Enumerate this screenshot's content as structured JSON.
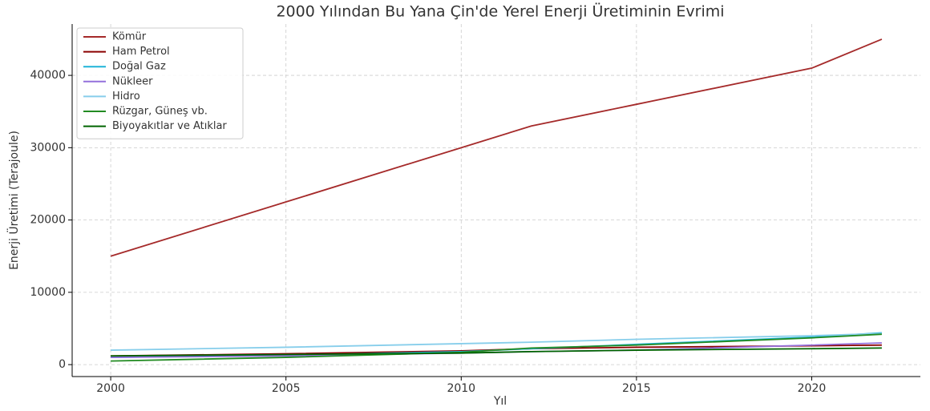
{
  "chart_data": {
    "type": "line",
    "title": "2000 Yılından Bu Yana Çin'de Yerel Enerji Üretiminin Evrimi",
    "x_label": "Yıl",
    "y_label": "Enerji Üretimi (Terajoule)",
    "x": [
      2000,
      2005,
      2010,
      2012,
      2015,
      2020,
      2022
    ],
    "series": [
      {
        "name": "Kömür",
        "color": "#a52a2a",
        "values": [
          15000,
          22500,
          30000,
          33000,
          36000,
          41000,
          45000
        ]
      },
      {
        "name": "Ham Petrol",
        "color": "#8b0000",
        "values": [
          1200,
          1500,
          1900,
          2200,
          2400,
          2600,
          2700
        ]
      },
      {
        "name": "Doğal Gaz",
        "color": "#1fb4d8",
        "values": [
          1000,
          1300,
          1800,
          2200,
          2800,
          3800,
          4400
        ]
      },
      {
        "name": "Nükleer",
        "color": "#9370db",
        "values": [
          1000,
          1200,
          1600,
          1800,
          2000,
          2700,
          3000
        ]
      },
      {
        "name": "Hidro",
        "color": "#87ceeb",
        "values": [
          2000,
          2400,
          2900,
          3100,
          3500,
          4000,
          4300
        ]
      },
      {
        "name": "Rüzgar, Güneş vb.",
        "color": "#228b22",
        "values": [
          500,
          1000,
          1700,
          2300,
          2700,
          3700,
          4200
        ]
      },
      {
        "name": "Biyoyakıtlar ve Atıklar",
        "color": "#006400",
        "values": [
          1200,
          1400,
          1600,
          1800,
          2000,
          2200,
          2300
        ]
      }
    ],
    "xlim": [
      1998.9,
      2023.1
    ],
    "xticks": [
      2000,
      2005,
      2010,
      2015,
      2020
    ],
    "ylim": [
      -1650,
      47100
    ],
    "yticks": [
      0,
      10000,
      20000,
      30000,
      40000
    ],
    "grid": true,
    "legend": "upper left"
  }
}
